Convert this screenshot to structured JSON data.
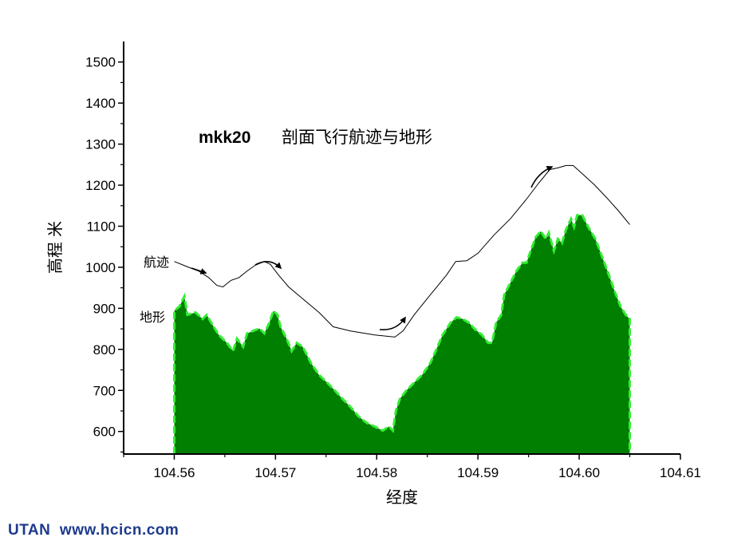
{
  "chart_data": {
    "type": "area",
    "title_bold": "mkk20",
    "title": "剖面飞行航迹与地形",
    "xlabel": "经度",
    "ylabel": "高程 米",
    "xlim": [
      104.555,
      104.61
    ],
    "ylim": [
      545,
      1550
    ],
    "xticks": [
      "104.56",
      "104.57",
      "104.58",
      "104.59",
      "104.60",
      "104.61"
    ],
    "yticks": [
      "600",
      "700",
      "800",
      "900",
      "1000",
      "1100",
      "1200",
      "1300",
      "1400",
      "1500"
    ],
    "grid": false,
    "colors": {
      "terrain_fill": "#007f00",
      "terrain_edge": "#33ee33",
      "track": "#000000"
    },
    "series": [
      {
        "name": "航迹",
        "type": "line",
        "x": [
          104.56,
          104.5613,
          104.5624,
          104.5634,
          104.5642,
          104.5648,
          104.5656,
          104.5664,
          104.5672,
          104.568,
          104.5689,
          104.5695,
          104.5703,
          104.5713,
          104.5727,
          104.5743,
          104.5757,
          104.5774,
          104.5798,
          104.5818,
          104.5826,
          104.5837,
          104.5853,
          104.5869,
          104.5878,
          104.5889,
          104.59,
          104.5916,
          104.5932,
          104.5948,
          104.596,
          104.5971,
          104.5979,
          104.5987,
          104.5994,
          104.6003,
          104.6015,
          104.6027,
          104.6039,
          104.605
        ],
        "y": [
          1014,
          1001,
          991,
          975,
          956,
          952,
          968,
          975,
          991,
          1005,
          1014,
          1007,
          981,
          952,
          923,
          890,
          855,
          845,
          835,
          830,
          845,
          884,
          933,
          981,
          1014,
          1016,
          1034,
          1079,
          1118,
          1166,
          1205,
          1238,
          1242,
          1248,
          1248,
          1228,
          1201,
          1170,
          1137,
          1104
        ]
      },
      {
        "name": "地形",
        "type": "area",
        "x": [
          104.56,
          104.5605,
          104.561,
          104.5613,
          104.5621,
          104.5628,
          104.5632,
          104.5639,
          104.5644,
          104.5652,
          104.5658,
          104.5662,
          104.5668,
          104.5672,
          104.5678,
          104.5684,
          104.5689,
          104.5694,
          104.5698,
          104.5702,
          104.5705,
          104.5711,
          104.5716,
          104.5721,
          104.5727,
          104.5735,
          104.5743,
          104.5751,
          104.5759,
          104.5766,
          104.5774,
          104.5782,
          104.579,
          104.5798,
          104.5806,
          104.5812,
          104.5816,
          104.5819,
          104.5823,
          104.5829,
          104.5837,
          104.5845,
          104.5853,
          104.5859,
          104.5865,
          104.5873,
          104.5879,
          104.5885,
          104.5891,
          104.5897,
          104.5904,
          104.591,
          104.5914,
          104.5918,
          104.5923,
          104.5926,
          104.5932,
          104.5938,
          104.5944,
          104.5948,
          104.5953,
          104.5957,
          104.5962,
          104.5967,
          104.597,
          104.5975,
          104.5979,
          104.5983,
          104.5987,
          104.5992,
          104.5995,
          104.5998,
          104.6003,
          104.6009,
          104.6016,
          104.6022,
          104.6028,
          104.6035,
          104.6041,
          104.6046,
          104.605
        ],
        "y": [
          894,
          904,
          929,
          884,
          890,
          874,
          884,
          855,
          835,
          816,
          796,
          826,
          806,
          839,
          845,
          851,
          839,
          865,
          894,
          884,
          855,
          826,
          796,
          816,
          806,
          767,
          738,
          719,
          699,
          680,
          660,
          637,
          621,
          612,
          602,
          612,
          602,
          651,
          680,
          699,
          719,
          738,
          767,
          800,
          835,
          865,
          878,
          874,
          865,
          849,
          835,
          816,
          816,
          865,
          884,
          933,
          962,
          991,
          1011,
          1011,
          1046,
          1073,
          1088,
          1069,
          1084,
          1040,
          1069,
          1059,
          1092,
          1118,
          1098,
          1127,
          1127,
          1098,
          1069,
          1030,
          991,
          942,
          904,
          884,
          874
        ]
      }
    ],
    "annotations": {
      "track_label": "航迹",
      "terrain_label": "地形"
    }
  },
  "footer": {
    "text": "UTAN  www.hcicn.com"
  }
}
